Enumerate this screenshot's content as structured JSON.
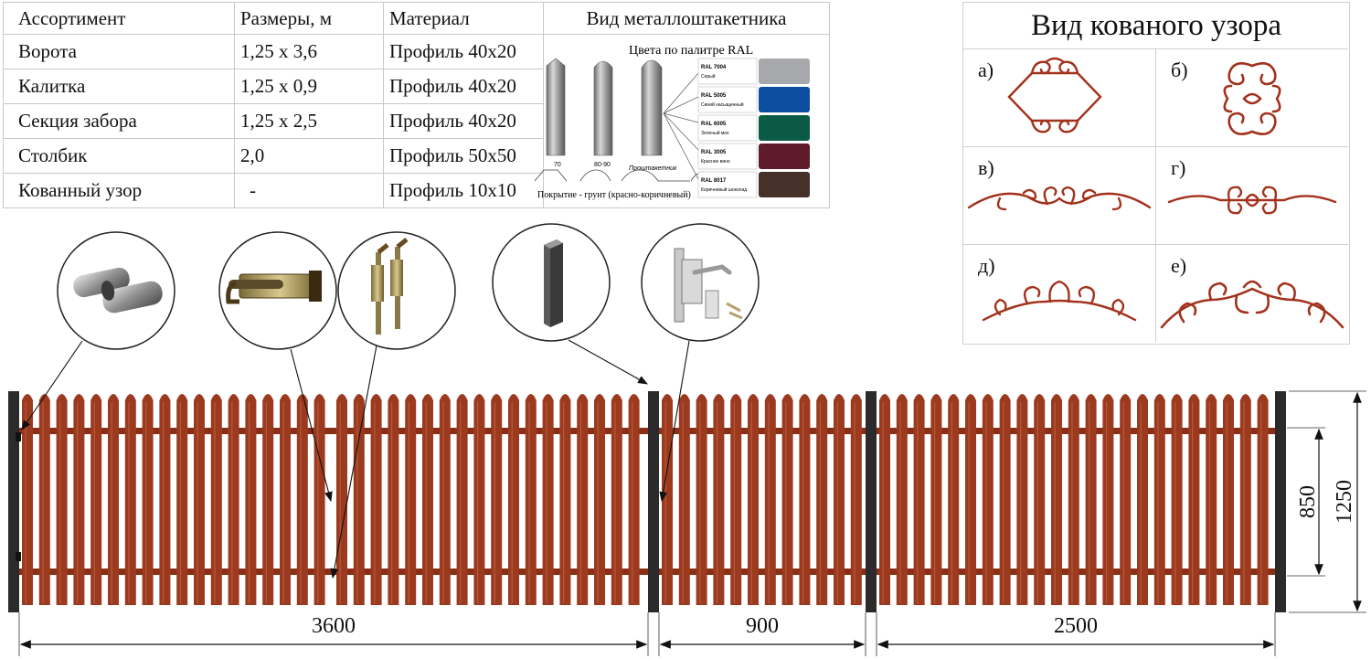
{
  "table": {
    "headers": [
      "Ассортимент",
      "Размеры, м",
      "Материал",
      "Вид металлоштакетника"
    ],
    "rows": [
      [
        "Ворота",
        "1,25 х 3,6",
        "Профиль 40х20"
      ],
      [
        "Калитка",
        "1,25 х 0,9",
        "Профиль 40х20"
      ],
      [
        "Секция забора",
        "1,25 х 2,5",
        "Профиль 40х20"
      ],
      [
        "Столбик",
        "2,0",
        "Профиль 50х50"
      ],
      [
        "Кованный узор",
        "-",
        "Профиль 10х10"
      ]
    ]
  },
  "pickets": {
    "palette_title": "Цвета по палитре RAL",
    "widths": [
      "70",
      "80-90"
    ],
    "profile_label": "Проштакетник",
    "coating": "Покрытие - грунт (красно-коричневый)",
    "colors": [
      {
        "code": "RAL 7004",
        "name": "Серый",
        "hex": "#a6a8ab"
      },
      {
        "code": "RAL 5005",
        "name": "Синий насыщенный",
        "hex": "#0d4ea0"
      },
      {
        "code": "RAL 6005",
        "name": "Зеленый мох",
        "hex": "#0b5a45"
      },
      {
        "code": "RAL 3005",
        "name": "Красное вино",
        "hex": "#5e1b2a"
      },
      {
        "code": "RAL 8017",
        "name": "Коричневый шоколад",
        "hex": "#45302a"
      }
    ]
  },
  "patterns": {
    "title": "Вид кованого узора",
    "items": [
      "а)",
      "б)",
      "в)",
      "г)",
      "д)",
      "е)"
    ],
    "color": "#a2321c"
  },
  "fence": {
    "picket_color": "#9c3a1f",
    "post_color": "#2b2b2b",
    "dimensions": {
      "gate": "3600",
      "wicket": "900",
      "section": "2500",
      "inner_height": "850",
      "total_height": "1250"
    }
  }
}
